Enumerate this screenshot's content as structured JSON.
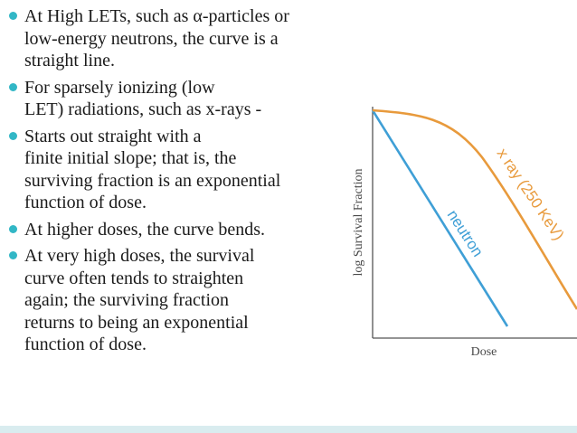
{
  "bullets": [
    {
      "lines": [
        "At High LETs, such as α-particles or",
        "low-energy neutrons, the curve is a",
        "straight line."
      ]
    },
    {
      "lines": [
        "For sparsely ionizing (low",
        "LET) radiations, such as x-rays -"
      ]
    },
    {
      "lines": [
        "Starts out straight with a",
        "finite initial slope; that is, the",
        "surviving fraction is an exponential",
        "function of dose."
      ]
    },
    {
      "lines": [
        "At higher doses, the curve bends."
      ]
    },
    {
      "lines": [
        " At very high doses, the survival",
        "curve often tends to straighten",
        "again; the surviving fraction",
        "returns to being an exponential",
        "function of dose."
      ]
    }
  ],
  "figure": {
    "x_axis_label": "Dose",
    "y_axis_label": "log Survival Fraction",
    "neutron_label": "neutron",
    "xray_label": "x ray (250 KeV)",
    "colors": {
      "neutron": "#3f9fd6",
      "xray": "#e89a3c",
      "axes": "#555555",
      "bullet": "#32b7c6",
      "bottom_bar": "#d9ecef"
    }
  }
}
